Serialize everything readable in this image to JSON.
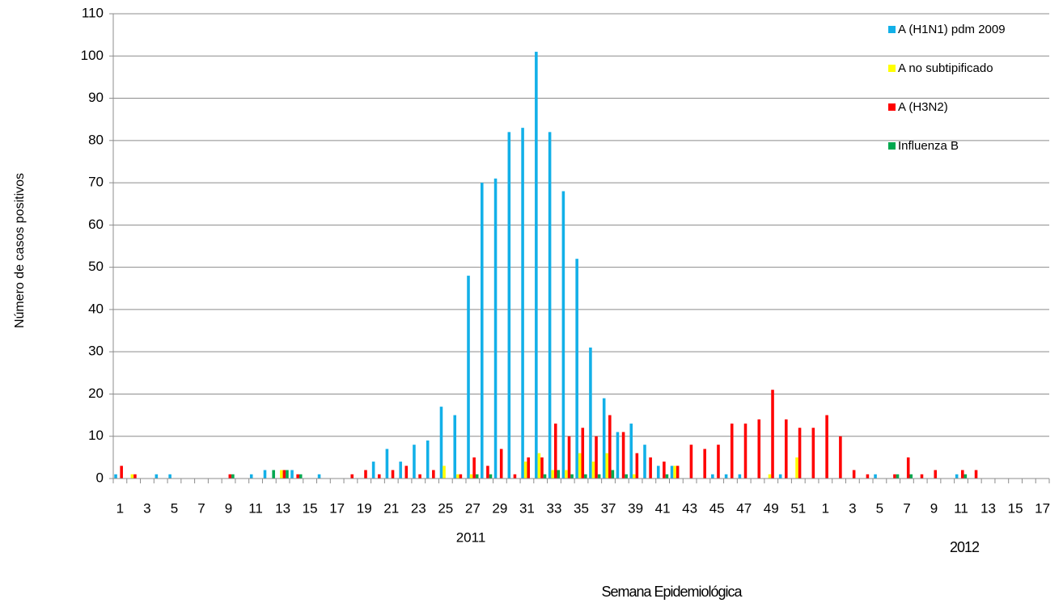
{
  "chart_data": {
    "type": "bar",
    "y_label": "Número de casos positivos",
    "x_label": "Semana Epidemiológica",
    "year_labels": [
      "2011",
      "2012"
    ],
    "categories": [
      "1",
      null,
      "3",
      null,
      "5",
      null,
      "7",
      null,
      "9",
      null,
      "11",
      null,
      "13",
      null,
      "15",
      null,
      "17",
      null,
      "19",
      null,
      "21",
      null,
      "23",
      null,
      "25",
      null,
      "27",
      null,
      "29",
      null,
      "31",
      null,
      "33",
      null,
      "35",
      null,
      "37",
      null,
      "39",
      null,
      "41",
      null,
      "43",
      null,
      "45",
      null,
      "47",
      null,
      "49",
      null,
      "51",
      null,
      "1",
      null,
      "3",
      null,
      "5",
      null,
      "7",
      null,
      "9",
      null,
      "11",
      null,
      "13",
      null,
      "15",
      null,
      "17"
    ],
    "series": [
      {
        "name": "A (H1N1) pdm 2009",
        "color": "#12b0e8",
        "values": [
          1,
          0,
          0,
          1,
          1,
          0,
          0,
          0,
          0,
          0,
          1,
          2,
          0,
          2,
          0,
          1,
          0,
          0,
          0,
          4,
          7,
          4,
          8,
          9,
          17,
          15,
          48,
          70,
          71,
          82,
          83,
          101,
          82,
          68,
          52,
          31,
          19,
          11,
          13,
          8,
          3,
          3,
          0,
          0,
          1,
          1,
          1,
          0,
          0,
          1,
          0,
          0,
          0,
          0,
          0,
          0,
          1,
          0,
          0,
          0,
          0,
          0,
          1,
          0,
          0,
          0,
          0,
          0,
          0
        ]
      },
      {
        "name": "A no subtipificado",
        "color": "#ffff00",
        "values": [
          0,
          1,
          0,
          0,
          0,
          0,
          0,
          0,
          0,
          0,
          0,
          0,
          2,
          0,
          0,
          0,
          0,
          0,
          0,
          0,
          0,
          0,
          0,
          0,
          3,
          1,
          1,
          0,
          0,
          0,
          4,
          6,
          2,
          2,
          6,
          4,
          6,
          0,
          1,
          0,
          0,
          3,
          0,
          0,
          0,
          0,
          0,
          0,
          1,
          0,
          5,
          0,
          0,
          0,
          0,
          0,
          0,
          0,
          0,
          0,
          0,
          0,
          0,
          0,
          0,
          0,
          0,
          0,
          0
        ]
      },
      {
        "name": "A (H3N2)",
        "color": "#ff0000",
        "values": [
          3,
          1,
          0,
          0,
          0,
          0,
          0,
          0,
          1,
          0,
          0,
          0,
          2,
          1,
          0,
          0,
          0,
          1,
          2,
          1,
          2,
          3,
          1,
          2,
          0,
          1,
          5,
          3,
          7,
          1,
          5,
          5,
          13,
          10,
          12,
          10,
          15,
          11,
          6,
          5,
          4,
          3,
          8,
          7,
          8,
          13,
          13,
          14,
          21,
          14,
          12,
          12,
          15,
          10,
          2,
          1,
          0,
          1,
          5,
          1,
          2,
          0,
          2,
          2,
          0,
          0,
          0,
          0,
          0
        ]
      },
      {
        "name": "Influenza  B",
        "color": "#00a84f",
        "values": [
          0,
          0,
          0,
          0,
          0,
          0,
          0,
          0,
          1,
          0,
          0,
          2,
          2,
          1,
          0,
          0,
          0,
          0,
          0,
          0,
          0,
          0,
          0,
          0,
          0,
          0,
          1,
          1,
          0,
          0,
          0,
          1,
          2,
          1,
          1,
          1,
          2,
          1,
          0,
          0,
          1,
          0,
          0,
          0,
          0,
          0,
          0,
          0,
          0,
          0,
          0,
          0,
          0,
          0,
          0,
          0,
          0,
          1,
          1,
          0,
          0,
          0,
          1,
          0,
          0,
          0,
          0,
          0,
          0
        ]
      }
    ],
    "ylim": [
      0,
      110
    ],
    "yticks": [
      0,
      10,
      20,
      30,
      40,
      50,
      60,
      70,
      80,
      90,
      100,
      110
    ],
    "grid": true,
    "legend": "top-right"
  }
}
